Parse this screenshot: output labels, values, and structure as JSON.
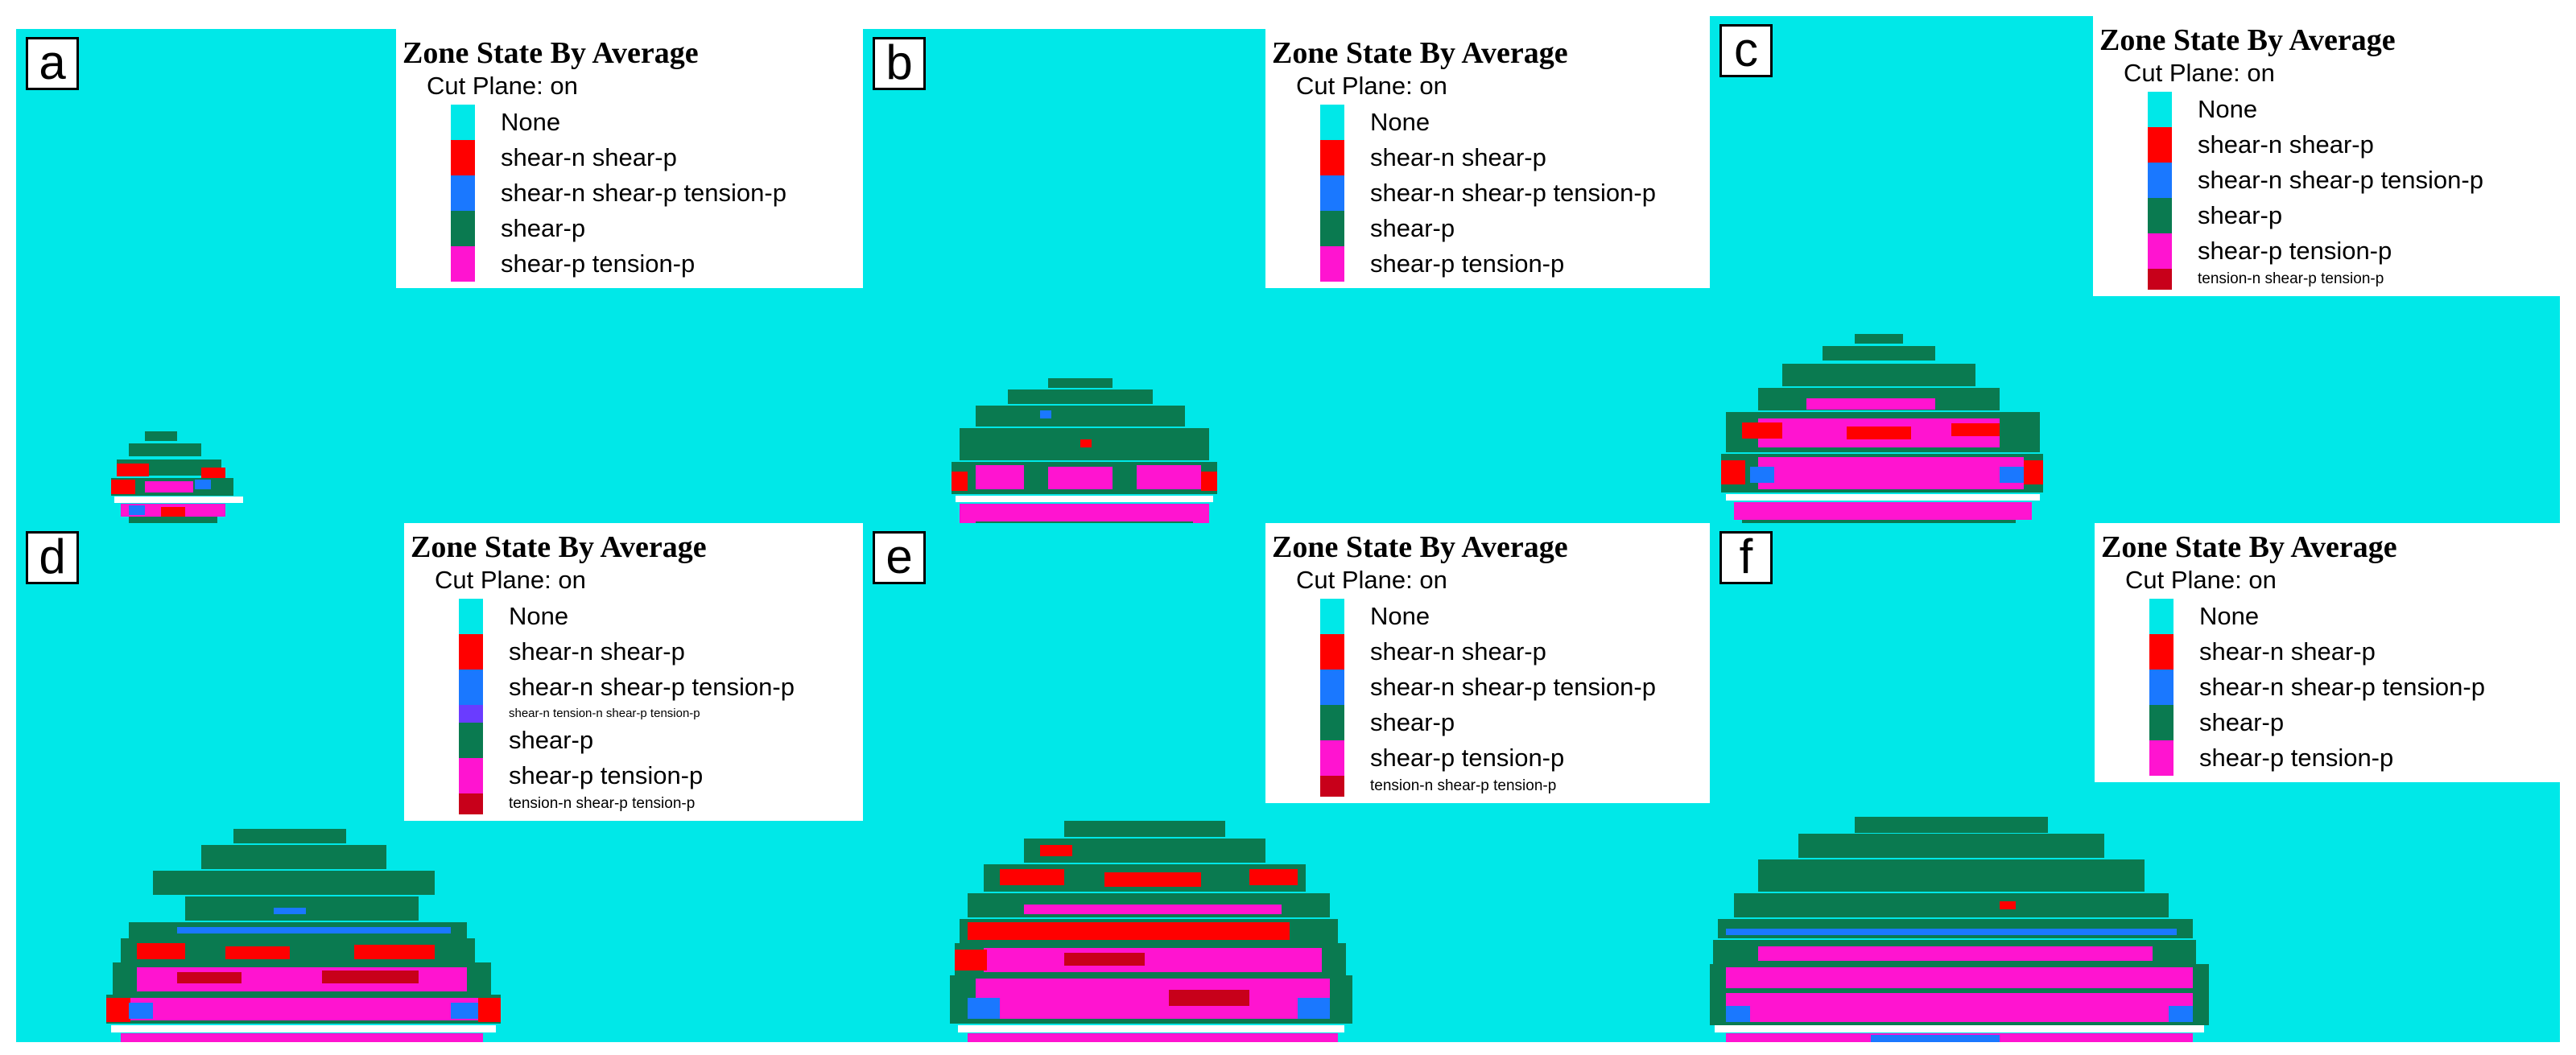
{
  "colors": {
    "none": "#00e8e8",
    "shear_n_shear_p": "#ff0000",
    "shear_n_shear_p_tension_p": "#1a78ff",
    "shear_n_tension_n_shear_p_tension_p": "#6a3cff",
    "shear_p": "#0a7a50",
    "shear_p_tension_p": "#ff14d0",
    "tension_n_shear_p_tension_p": "#c8001a",
    "opening": "#ffffff"
  },
  "legend_title": "Zone State By Average",
  "legend_subtitle": "Cut Plane: on",
  "panels": [
    {
      "label": "a",
      "items": [
        {
          "key": "none",
          "text": "None",
          "size": "normal"
        },
        {
          "key": "shear_n_shear_p",
          "text": "shear-n shear-p",
          "size": "normal"
        },
        {
          "key": "shear_n_shear_p_tension_p",
          "text": "shear-n shear-p tension-p",
          "size": "normal"
        },
        {
          "key": "shear_p",
          "text": "shear-p",
          "size": "normal"
        },
        {
          "key": "shear_p_tension_p",
          "text": "shear-p tension-p",
          "size": "normal"
        }
      ]
    },
    {
      "label": "b",
      "items": [
        {
          "key": "none",
          "text": "None",
          "size": "normal"
        },
        {
          "key": "shear_n_shear_p",
          "text": "shear-n shear-p",
          "size": "normal"
        },
        {
          "key": "shear_n_shear_p_tension_p",
          "text": "shear-n shear-p tension-p",
          "size": "normal"
        },
        {
          "key": "shear_p",
          "text": "shear-p",
          "size": "normal"
        },
        {
          "key": "shear_p_tension_p",
          "text": "shear-p tension-p",
          "size": "normal"
        }
      ]
    },
    {
      "label": "c",
      "items": [
        {
          "key": "none",
          "text": "None",
          "size": "normal"
        },
        {
          "key": "shear_n_shear_p",
          "text": "shear-n shear-p",
          "size": "normal"
        },
        {
          "key": "shear_n_shear_p_tension_p",
          "text": "shear-n shear-p tension-p",
          "size": "normal"
        },
        {
          "key": "shear_p",
          "text": "shear-p",
          "size": "normal"
        },
        {
          "key": "shear_p_tension_p",
          "text": "shear-p tension-p",
          "size": "normal"
        },
        {
          "key": "tension_n_shear_p_tension_p",
          "text": "tension-n shear-p tension-p",
          "size": "small"
        }
      ]
    },
    {
      "label": "d",
      "items": [
        {
          "key": "none",
          "text": "None",
          "size": "normal"
        },
        {
          "key": "shear_n_shear_p",
          "text": "shear-n shear-p",
          "size": "normal"
        },
        {
          "key": "shear_n_shear_p_tension_p",
          "text": "shear-n shear-p tension-p",
          "size": "normal"
        },
        {
          "key": "shear_n_tension_n_shear_p_tension_p",
          "text": "shear-n tension-n shear-p tension-p",
          "size": "tiny"
        },
        {
          "key": "shear_p",
          "text": "shear-p",
          "size": "normal"
        },
        {
          "key": "shear_p_tension_p",
          "text": "shear-p tension-p",
          "size": "normal"
        },
        {
          "key": "tension_n_shear_p_tension_p",
          "text": "tension-n shear-p tension-p",
          "size": "small"
        }
      ]
    },
    {
      "label": "e",
      "items": [
        {
          "key": "none",
          "text": "None",
          "size": "normal"
        },
        {
          "key": "shear_n_shear_p",
          "text": "shear-n shear-p",
          "size": "normal"
        },
        {
          "key": "shear_n_shear_p_tension_p",
          "text": "shear-n shear-p tension-p",
          "size": "normal"
        },
        {
          "key": "shear_p",
          "text": "shear-p",
          "size": "normal"
        },
        {
          "key": "shear_p_tension_p",
          "text": "shear-p tension-p",
          "size": "normal"
        },
        {
          "key": "tension_n_shear_p_tension_p",
          "text": "tension-n shear-p tension-p",
          "size": "small"
        }
      ]
    },
    {
      "label": "f",
      "items": [
        {
          "key": "none",
          "text": "None",
          "size": "normal"
        },
        {
          "key": "shear_n_shear_p",
          "text": "shear-n shear-p",
          "size": "normal"
        },
        {
          "key": "shear_n_shear_p_tension_p",
          "text": "shear-n shear-p tension-p",
          "size": "normal"
        },
        {
          "key": "shear_p",
          "text": "shear-p",
          "size": "normal"
        },
        {
          "key": "shear_p_tension_p",
          "text": "shear-p tension-p",
          "size": "normal"
        }
      ]
    }
  ]
}
